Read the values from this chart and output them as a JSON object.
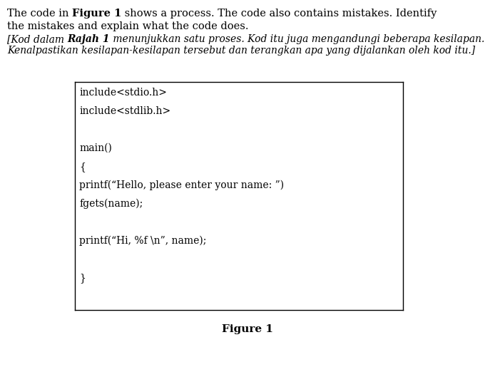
{
  "en_line1_parts": [
    {
      "text": "The code in ",
      "bold": false,
      "italic": false
    },
    {
      "text": "Figure 1",
      "bold": true,
      "italic": false
    },
    {
      "text": " shows a process. The code also contains mistakes. Identify",
      "bold": false,
      "italic": false
    }
  ],
  "en_line2": "the mistakes and explain what the code does.",
  "ms_line1_parts": [
    {
      "text": "[Kod dalam ",
      "bold": false,
      "italic": true
    },
    {
      "text": "Rajah 1",
      "bold": true,
      "italic": true
    },
    {
      "text": " menunjukkan satu proses. Kod itu juga mengandungi beberapa kesilapan.",
      "bold": false,
      "italic": true
    }
  ],
  "ms_line2": "Kenalpastikan kesilapan-kesilapan tersebut dan terangkan apa yang dijalankan oleh kod itu.]",
  "code_lines": [
    "include<stdio.h>",
    "include<stdlib.h>",
    "",
    "main()",
    "{",
    "printf(“Hello, please enter your name: ”)",
    "fgets(name);",
    "",
    "printf(“Hi, %f \\n”, name);",
    "",
    "}"
  ],
  "figure_label": "Figure 1",
  "bg_color": "#ffffff",
  "box_color": "#000000",
  "text_color": "#000000",
  "font_size_body": 10.5,
  "font_size_code": 10.0,
  "font_size_caption": 11,
  "fig_width": 6.94,
  "fig_height": 5.22,
  "dpi": 100
}
